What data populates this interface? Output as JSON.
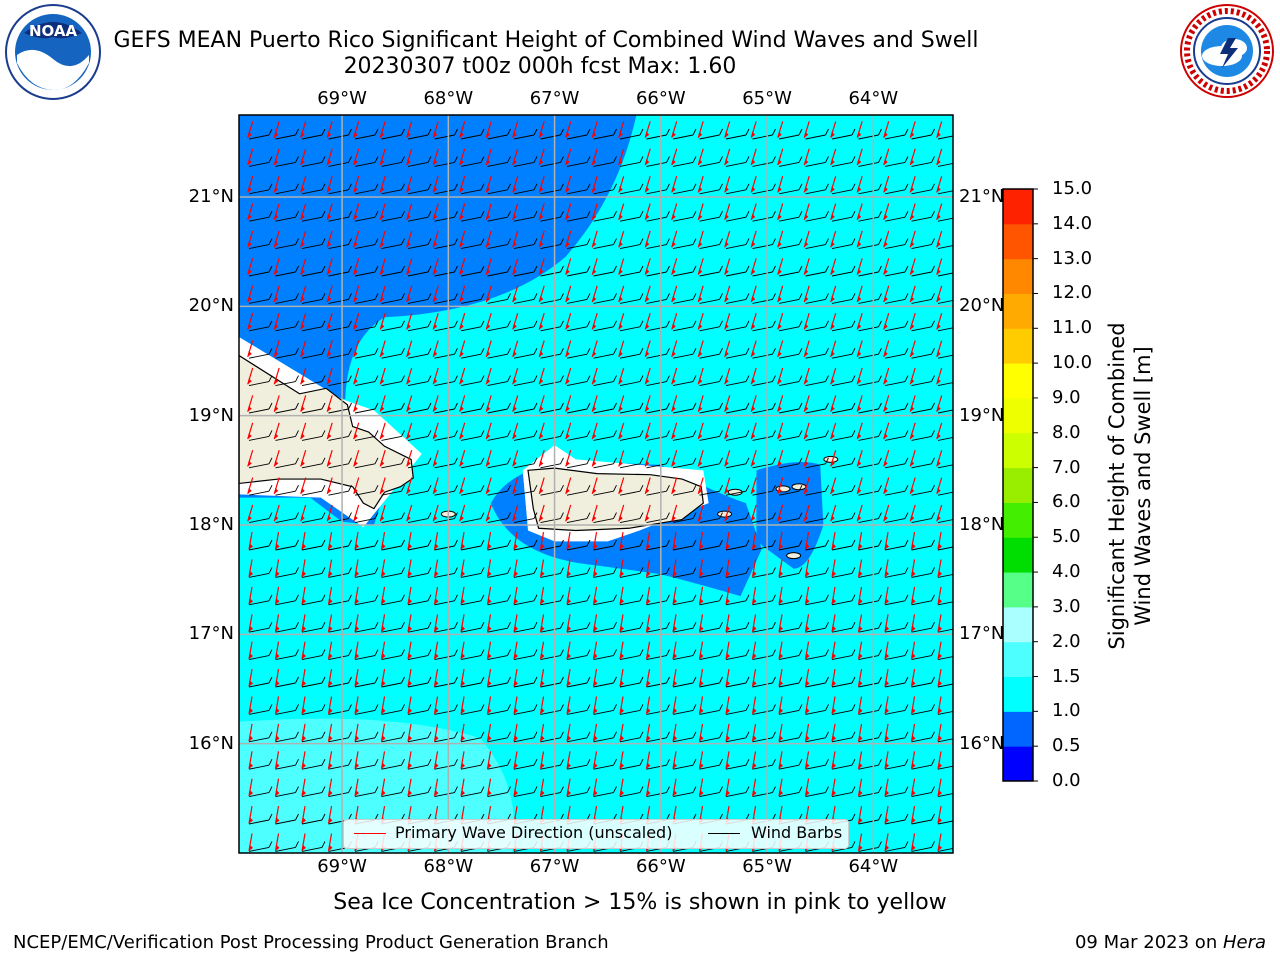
{
  "header": {
    "title_line1": "GEFS MEAN Puerto Rico Significant Height of Combined Wind Waves and Swell",
    "title_line2": "20230307 t00z 000h fcst   Max: 1.60"
  },
  "logos": {
    "left": "noaa-logo",
    "right": "national-weather-service-logo"
  },
  "map": {
    "lon_ticks": [
      "69°W",
      "68°W",
      "67°W",
      "66°W",
      "65°W",
      "64°W"
    ],
    "lat_ticks": [
      "21°N",
      "20°N",
      "19°N",
      "18°N",
      "17°N",
      "16°N"
    ],
    "lon_range": [
      -69.97,
      -63.25
    ],
    "lat_range": [
      15.0,
      21.75
    ],
    "ocean_color": "#00ffff",
    "land_color": "#f0eedc",
    "legend": {
      "wave_direction": "Primary Wave Direction (unscaled)",
      "wind_barbs": "Wind Barbs",
      "wave_color": "#ff0000",
      "barb_color": "#000000"
    }
  },
  "colorbar": {
    "label_line1": "Significant Height of Combined",
    "label_line2": "Wind Waves and Swell [m]",
    "ticks": [
      "0.0",
      "0.5",
      "1.0",
      "1.5",
      "2.0",
      "3.0",
      "4.0",
      "5.0",
      "6.0",
      "7.0",
      "8.0",
      "9.0",
      "10.0",
      "11.0",
      "12.0",
      "13.0",
      "14.0",
      "15.0"
    ],
    "colors": [
      "#0000ff",
      "#0066ff",
      "#00ffff",
      "#4dffff",
      "#aaffff",
      "#55ff88",
      "#00dd00",
      "#44ee00",
      "#99ee00",
      "#ccff00",
      "#eeff00",
      "#ffff00",
      "#ffcc00",
      "#ffaa00",
      "#ff8800",
      "#ff5500",
      "#ff2200"
    ]
  },
  "notes": {
    "sea_ice": "Sea Ice Concentration > 15% is shown in pink to yellow"
  },
  "footer": {
    "left": "NCEP/EMC/Verification Post Processing Product Generation Branch",
    "right_date": "09 Mar 2023 on ",
    "right_host": "Hera"
  }
}
